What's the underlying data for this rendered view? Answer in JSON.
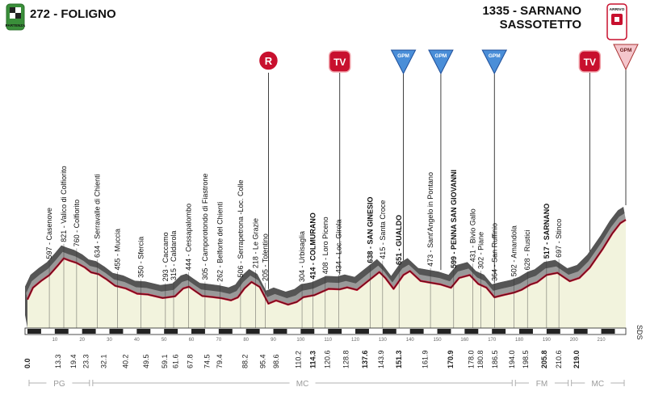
{
  "header": {
    "start_label": "272 - FOLIGNO",
    "start_badge": "PARTENZA",
    "finish_line1": "1335 - SARNANO",
    "finish_line2": "SASSOTETTO",
    "finish_badge": "ARRIVO"
  },
  "side_label": "SDS",
  "colors": {
    "profile_dark": "#555555",
    "profile_light": "#999999",
    "route_red": "#c8102e",
    "ground": "#f2f3dd",
    "marker_red": "#c8102e",
    "gpm_blue": "#4a8ed8",
    "gpm_pink": "#f4c6cc"
  },
  "markers": [
    {
      "type": "R",
      "label": "R",
      "km": 88.2
    },
    {
      "type": "TV",
      "label": "TV",
      "km": 114.3
    },
    {
      "type": "GPM",
      "label": "GPM",
      "km": 137.6
    },
    {
      "type": "GPM",
      "label": "GPM",
      "km": 151.3
    },
    {
      "type": "GPM",
      "label": "GPM",
      "km": 170.9
    },
    {
      "type": "TV",
      "label": "TV",
      "km": 205.8
    },
    {
      "type": "GPM_FINISH",
      "label": "GPM",
      "km": 219.0
    }
  ],
  "places": [
    {
      "text": "597 - Casenove",
      "km": 8.0,
      "bold": false
    },
    {
      "text": "821 - Valico di Colfiorito",
      "km": 13.3,
      "bold": false
    },
    {
      "text": "760 - Colfiorito",
      "km": 18.0,
      "bold": false
    },
    {
      "text": "634 - Serravalle di Chienti",
      "km": 25.5,
      "bold": false
    },
    {
      "text": "455 - Muccia",
      "km": 33.0,
      "bold": false
    },
    {
      "text": "350 - Sfercia",
      "km": 41.5,
      "bold": false
    },
    {
      "text": "293 - Caccamo",
      "km": 50.5,
      "bold": false
    },
    {
      "text": "315 - Caldarola",
      "km": 53.5,
      "bold": false
    },
    {
      "text": "444 - Cessapalombo",
      "km": 59.0,
      "bold": false
    },
    {
      "text": "305 - Camporotondo di Fiastrone",
      "km": 65.0,
      "bold": false
    },
    {
      "text": "262 - Belforte del Chienti",
      "km": 70.5,
      "bold": false
    },
    {
      "text": "506 - Serrapetrona -Loc. Colle",
      "km": 78.0,
      "bold": false
    },
    {
      "text": "218 - Le Grazie",
      "km": 83.5,
      "bold": false
    },
    {
      "text": "205 - Tolentino",
      "km": 87.0,
      "bold": false
    },
    {
      "text": "304 - Urbisaglia",
      "km": 100.5,
      "bold": false
    },
    {
      "text": "414 - COLMURANO",
      "km": 104.5,
      "bold": true
    },
    {
      "text": "408 - Loro Piceno",
      "km": 109.0,
      "bold": false
    },
    {
      "text": "434 - Loc. Girola",
      "km": 114.0,
      "bold": false
    },
    {
      "text": "638 - SAN GINESIO",
      "km": 125.5,
      "bold": true
    },
    {
      "text": "415 - Santa Croce",
      "km": 130.0,
      "bold": false
    },
    {
      "text": "651 - GUALDO",
      "km": 136.0,
      "bold": true
    },
    {
      "text": "473 - Sant'Angelo in Pontano",
      "km": 147.5,
      "bold": false
    },
    {
      "text": "599 - PENNA SAN GIOVANNI",
      "km": 156.0,
      "bold": true
    },
    {
      "text": "431 - Bivio Gallo",
      "km": 163.0,
      "bold": false
    },
    {
      "text": "302 - Piane",
      "km": 166.0,
      "bold": false
    },
    {
      "text": "364 - San Ruffinio",
      "km": 171.0,
      "bold": false
    },
    {
      "text": "502 - Amandola",
      "km": 178.0,
      "bold": false
    },
    {
      "text": "628 - Rustici",
      "km": 183.0,
      "bold": false
    },
    {
      "text": "517 - SARNANO",
      "km": 190.0,
      "bold": true
    },
    {
      "text": "697 - Stinco",
      "km": 194.5,
      "bold": false
    }
  ],
  "km_labels": [
    {
      "text": "0.0",
      "km": 0.0,
      "bold": true
    },
    {
      "text": "13.3",
      "km": 11.2,
      "bold": false
    },
    {
      "text": "19.4",
      "km": 16.8,
      "bold": false
    },
    {
      "text": "23.3",
      "km": 21.4,
      "bold": false
    },
    {
      "text": "32.1",
      "km": 27.9,
      "bold": false
    },
    {
      "text": "40.2",
      "km": 35.9,
      "bold": false
    },
    {
      "text": "49.5",
      "km": 43.5,
      "bold": false
    },
    {
      "text": "59.1",
      "km": 50.2,
      "bold": false
    },
    {
      "text": "61.6",
      "km": 54.2,
      "bold": false
    },
    {
      "text": "67.8",
      "km": 59.6,
      "bold": false
    },
    {
      "text": "74.5",
      "km": 65.8,
      "bold": false
    },
    {
      "text": "79.4",
      "km": 70.3,
      "bold": false
    },
    {
      "text": "88.2",
      "km": 79.7,
      "bold": false
    },
    {
      "text": "95.4",
      "km": 86.2,
      "bold": false
    },
    {
      "text": "98.6",
      "km": 91.1,
      "bold": false
    },
    {
      "text": "110.2",
      "km": 99.2,
      "bold": false
    },
    {
      "text": "114.3",
      "km": 104.5,
      "bold": true
    },
    {
      "text": "120.6",
      "km": 109.8,
      "bold": false
    },
    {
      "text": "128.8",
      "km": 116.6,
      "bold": false
    },
    {
      "text": "137.6",
      "km": 123.6,
      "bold": true
    },
    {
      "text": "143.9",
      "km": 129.5,
      "bold": false
    },
    {
      "text": "151.3",
      "km": 136.0,
      "bold": true
    },
    {
      "text": "161.9",
      "km": 145.6,
      "bold": false
    },
    {
      "text": "170.9",
      "km": 154.8,
      "bold": true
    },
    {
      "text": "178.0",
      "km": 162.4,
      "bold": false
    },
    {
      "text": "180.8",
      "km": 165.8,
      "bold": false
    },
    {
      "text": "186.5",
      "km": 171.1,
      "bold": false
    },
    {
      "text": "194.0",
      "km": 177.3,
      "bold": false
    },
    {
      "text": "198.5",
      "km": 182.3,
      "bold": false
    },
    {
      "text": "205.8",
      "km": 189.2,
      "bold": true
    },
    {
      "text": "210.6",
      "km": 194.5,
      "bold": false
    },
    {
      "text": "219.0",
      "km": 201.0,
      "bold": true
    }
  ],
  "axis_ticks": [
    "10",
    "20",
    "30",
    "40",
    "50",
    "60",
    "70",
    "80",
    "90",
    "100",
    "110",
    "120",
    "130",
    "140",
    "150",
    "160",
    "170",
    "180",
    "190",
    "200",
    "210"
  ],
  "regions": [
    {
      "code": "PG",
      "km_from": 0.0,
      "km_to": 23.3
    },
    {
      "code": "MC",
      "km_from": 23.3,
      "km_to": 178.0
    },
    {
      "code": "FM",
      "km_from": 178.0,
      "km_to": 198.5
    },
    {
      "code": "MC",
      "km_from": 198.5,
      "km_to": 219.0
    }
  ],
  "chart_data": {
    "type": "area",
    "x_unit": "km",
    "y_unit": "m",
    "elevation_profile": [
      [
        0,
        272
      ],
      [
        2,
        430
      ],
      [
        5,
        520
      ],
      [
        8,
        597
      ],
      [
        11,
        720
      ],
      [
        13.3,
        821
      ],
      [
        15.5,
        790
      ],
      [
        18,
        760
      ],
      [
        21,
        700
      ],
      [
        23.3,
        634
      ],
      [
        26,
        610
      ],
      [
        29,
        540
      ],
      [
        32.1,
        455
      ],
      [
        36,
        420
      ],
      [
        40.2,
        350
      ],
      [
        44,
        340
      ],
      [
        49.5,
        293
      ],
      [
        52,
        305
      ],
      [
        54,
        315
      ],
      [
        57,
        420
      ],
      [
        59.1,
        444
      ],
      [
        61.6,
        380
      ],
      [
        64,
        320
      ],
      [
        67.8,
        305
      ],
      [
        71,
        290
      ],
      [
        74.5,
        262
      ],
      [
        77,
        300
      ],
      [
        79.4,
        420
      ],
      [
        82,
        506
      ],
      [
        85,
        440
      ],
      [
        88.2,
        218
      ],
      [
        91,
        260
      ],
      [
        95.4,
        205
      ],
      [
        98.6,
        240
      ],
      [
        101,
        304
      ],
      [
        105,
        330
      ],
      [
        110.2,
        414
      ],
      [
        114.3,
        408
      ],
      [
        117,
        434
      ],
      [
        120.6,
        400
      ],
      [
        124,
        500
      ],
      [
        128.8,
        638
      ],
      [
        131,
        560
      ],
      [
        134,
        415
      ],
      [
        137.6,
        600
      ],
      [
        140,
        651
      ],
      [
        143.9,
        520
      ],
      [
        147,
        500
      ],
      [
        151.3,
        473
      ],
      [
        155,
        430
      ],
      [
        158,
        560
      ],
      [
        161.9,
        599
      ],
      [
        165,
        480
      ],
      [
        168,
        431
      ],
      [
        170.9,
        302
      ],
      [
        174,
        330
      ],
      [
        178,
        364
      ],
      [
        180.8,
        400
      ],
      [
        184,
        470
      ],
      [
        186.5,
        502
      ],
      [
        190,
        600
      ],
      [
        194,
        628
      ],
      [
        198.5,
        517
      ],
      [
        202,
        560
      ],
      [
        205.8,
        697
      ],
      [
        210.6,
        950
      ],
      [
        214,
        1150
      ],
      [
        217,
        1290
      ],
      [
        219,
        1335
      ]
    ]
  }
}
